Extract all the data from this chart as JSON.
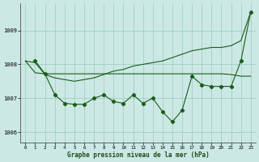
{
  "xlabel": "Graphe pression niveau de la mer (hPa)",
  "bg_color": "#cce8e4",
  "grid_color": "#99ccbb",
  "line_color": "#1a5c1a",
  "ylim": [
    1005.7,
    1009.8
  ],
  "xlim": [
    -0.5,
    23.5
  ],
  "yticks": [
    1006,
    1007,
    1008,
    1009
  ],
  "xticks": [
    0,
    1,
    2,
    3,
    4,
    5,
    6,
    7,
    8,
    9,
    10,
    11,
    12,
    13,
    14,
    15,
    16,
    17,
    18,
    19,
    20,
    21,
    22,
    23
  ],
  "series1_x": [
    0,
    1,
    2,
    3,
    4,
    5,
    6,
    7,
    8,
    9,
    10,
    11,
    12,
    13,
    14,
    15,
    16,
    17,
    18,
    19,
    20,
    21,
    22,
    23
  ],
  "series1": [
    1008.1,
    1008.05,
    1007.7,
    1007.6,
    1007.55,
    1007.5,
    1007.55,
    1007.6,
    1007.7,
    1007.8,
    1007.85,
    1007.95,
    1008.0,
    1008.05,
    1008.1,
    1008.2,
    1008.3,
    1008.4,
    1008.45,
    1008.5,
    1008.5,
    1008.55,
    1008.7,
    1009.55
  ],
  "series2_x": [
    0,
    1,
    2,
    3,
    4,
    5,
    6,
    7,
    8,
    9,
    10,
    11,
    12,
    13,
    14,
    15,
    16,
    17,
    18,
    19,
    20,
    21,
    22,
    23
  ],
  "series2": [
    1008.1,
    1007.75,
    1007.72,
    1007.72,
    1007.72,
    1007.72,
    1007.72,
    1007.72,
    1007.72,
    1007.72,
    1007.72,
    1007.72,
    1007.72,
    1007.72,
    1007.72,
    1007.72,
    1007.72,
    1007.72,
    1007.72,
    1007.72,
    1007.72,
    1007.7,
    1007.65,
    1007.65
  ],
  "series3_x": [
    1,
    2,
    3,
    4,
    5,
    6,
    7,
    8,
    9,
    10,
    11,
    12,
    13,
    14,
    15,
    16,
    17,
    18,
    19,
    20,
    21,
    22,
    23
  ],
  "series3": [
    1008.1,
    1007.72,
    1007.1,
    1006.85,
    1006.82,
    1006.82,
    1007.0,
    1007.1,
    1006.9,
    1006.85,
    1007.1,
    1006.85,
    1007.0,
    1006.6,
    1006.3,
    1006.65,
    1007.65,
    1007.4,
    1007.35,
    1007.35,
    1007.35,
    1008.1,
    1009.55
  ]
}
